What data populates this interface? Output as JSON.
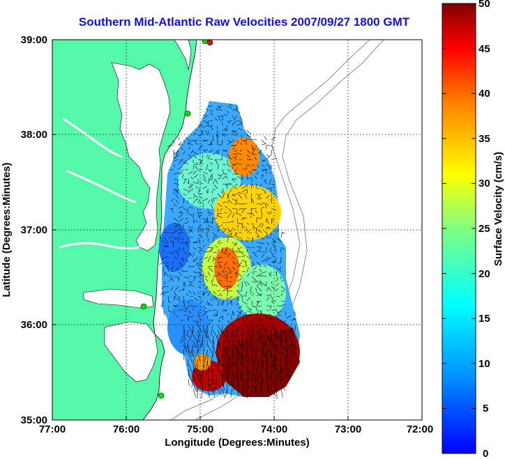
{
  "title": "Southern Mid-Atlantic Raw Velocities 2007/09/27 1800 GMT",
  "map": {
    "xlabel": "Longitude (Degrees:Minutes)",
    "ylabel": "Latitude (Degrees:Minutes)",
    "x_ticks": [
      "77:00",
      "76:00",
      "75:00",
      "74:00",
      "73:00",
      "72:00"
    ],
    "y_ticks": [
      "39:00",
      "38:00",
      "37:00",
      "36:00",
      "35:00"
    ],
    "lon_range": [
      -77,
      -72
    ],
    "lat_range": [
      35,
      39
    ],
    "grid": "dotted",
    "land_color": "#55f7a8",
    "shelf_contour_color": "#8c8c8c",
    "arrow_color": "#000000",
    "station_colors": [
      "#00e000",
      "#e01010"
    ]
  },
  "colorbar": {
    "label": "Surface Velocity (cm/s)",
    "ticks": [
      "50",
      "45",
      "40",
      "35",
      "30",
      "25",
      "20",
      "15",
      "10",
      "5",
      "0"
    ],
    "min": 0,
    "max": 50,
    "colormap": "jet"
  }
}
